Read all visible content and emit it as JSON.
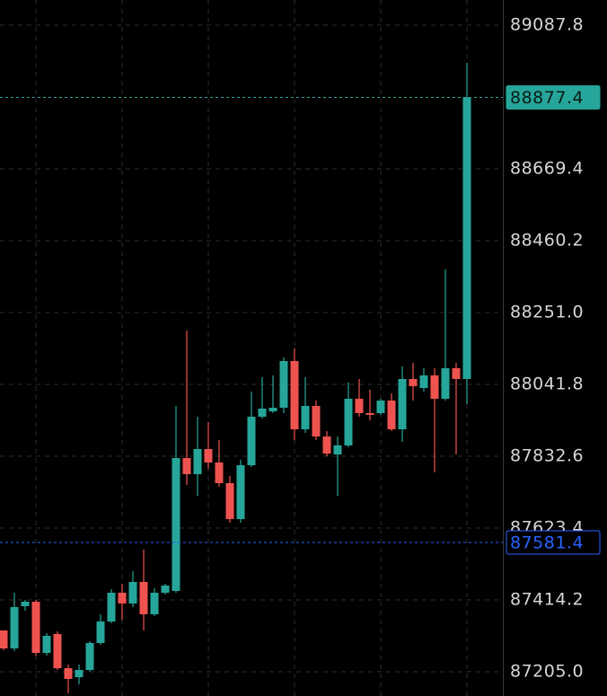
{
  "chart_data": {
    "type": "candlestick",
    "ylim": [
      87134.4,
      89161.0
    ],
    "yticks": [
      89087.8,
      88669.4,
      88460.2,
      {
        "value": 88251.0,
        "label": "88251.0"
      },
      88041.8,
      87832.6,
      87623.4,
      87414.2,
      {
        "value": 87205.0,
        "label": "87205.0"
      }
    ],
    "grid": true,
    "up_color": "#26a69a",
    "down_color": "#ef5350",
    "open": [
      87325.3,
      87273.0,
      87395.9,
      87408.9,
      87259.9,
      87314.8,
      87215.4,
      87189.3,
      87210.2,
      87288.7,
      87351.4,
      87435.1,
      87403.7,
      87466.5,
      87372.3,
      87435.1,
      87440.3,
      87827.3,
      87780.3,
      87853.5,
      87814.3,
      87754.1,
      87649.5,
      87806.4,
      87947.6,
      87963.3,
      87973.8,
      88109.8,
      87911.0,
      87979.0,
      87890.1,
      87837.8,
      87864.0,
      87999.9,
      87958.1,
      87958.1,
      87994.7,
      87911.0,
      88057.5,
      88031.3,
      88067.9,
      87999.9,
      88088.8,
      88057.5
    ],
    "high": [
      87325.3,
      87435.1,
      87414.2,
      87414.2,
      87317.4,
      87322.7,
      87225.9,
      87225.9,
      87293.9,
      87372.3,
      87445.6,
      87461.2,
      87497.9,
      87560.6,
      87448.2,
      87461.2,
      87979.0,
      88198.7,
      87947.6,
      87931.9,
      87879.6,
      87775.0,
      87822.1,
      88020.9,
      88062.7,
      88067.9,
      88120.2,
      88146.4,
      88062.7,
      87994.7,
      87905.8,
      87890.1,
      88047.0,
      88057.5,
      88026.1,
      87999.9,
      88015.6,
      88094.1,
      88104.5,
      88088.8,
      88088.8,
      88376.5,
      88104.5,
      88978.0
    ],
    "low": [
      87267.7,
      87265.1,
      87382.8,
      87252.0,
      87252.0,
      87210.2,
      87142.2,
      87168.4,
      87205.0,
      87283.4,
      87346.2,
      87356.6,
      87393.3,
      87325.3,
      87367.1,
      87429.9,
      87435.1,
      87748.9,
      87717.5,
      87796.0,
      87743.7,
      87639.1,
      87639.1,
      87801.2,
      87942.4,
      87958.1,
      87958.1,
      87879.6,
      87900.6,
      87879.6,
      87832.6,
      87717.5,
      87858.7,
      87947.6,
      87937.2,
      87952.9,
      87905.8,
      87874.4,
      87994.7,
      88020.9,
      87785.5,
      87994.7,
      87837.8,
      87984.2
    ],
    "close": [
      87273.0,
      87393.3,
      87408.9,
      87259.9,
      87309.6,
      87215.4,
      87184.1,
      87210.2,
      87288.7,
      87351.4,
      87435.1,
      87403.7,
      87466.5,
      87372.3,
      87435.1,
      87456.0,
      87827.3,
      87780.3,
      87853.5,
      87814.3,
      87754.1,
      87649.5,
      87806.4,
      87947.6,
      87971.2,
      87973.8,
      88109.8,
      87911.0,
      87979.0,
      87890.1,
      87840.4,
      87864.0,
      87999.9,
      87958.1,
      87952.9,
      87994.7,
      87911.0,
      88057.5,
      88036.5,
      88067.9,
      87999.9,
      88088.8,
      88057.5,
      88877.4
    ],
    "price_lines": [
      {
        "value": 88877.4,
        "color": "#26a69a",
        "filled": true
      },
      {
        "value": 87581.4,
        "color": "#2962ff",
        "filled": false
      }
    ]
  }
}
